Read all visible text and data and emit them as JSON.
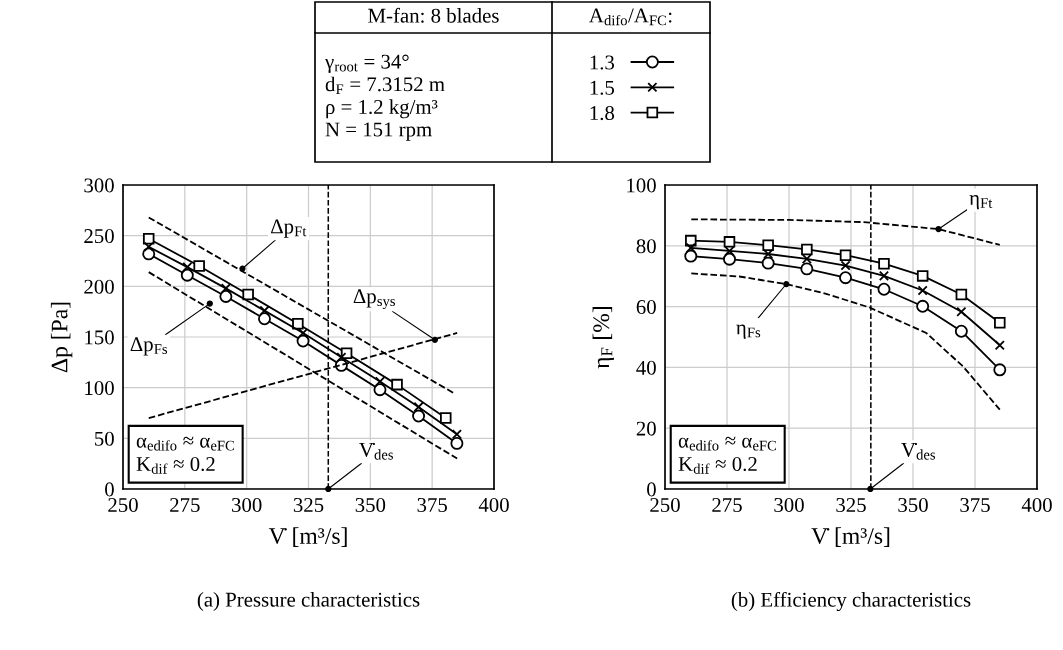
{
  "chart_data": [
    {
      "type": "line",
      "title": "(a) Pressure characteristics",
      "xlabel": "V̇ [m³/s]",
      "ylabel": "Δp [Pa]",
      "xlim": [
        250,
        400
      ],
      "xticks": [
        250,
        275,
        300,
        325,
        350,
        375,
        400
      ],
      "ylim": [
        0,
        300
      ],
      "yticks": [
        0,
        50,
        100,
        150,
        200,
        250,
        300
      ],
      "grid": true,
      "legend": "top",
      "legend_title": "A$_{difo}$/A$_{FC}$:",
      "series": [
        {
          "name": "1.3",
          "color": "#000000",
          "marker": "circle",
          "line_style": "solid",
          "x": [
            260.4,
            276,
            291.6,
            307.2,
            322.8,
            338.3,
            353.9,
            369.5,
            385
          ],
          "values": [
            232,
            211,
            190,
            168,
            146,
            122,
            98,
            72,
            45
          ]
        },
        {
          "name": "1.5",
          "color": "#000000",
          "marker": "cross",
          "line_style": "solid",
          "x": [
            260.4,
            276,
            291.6,
            307.2,
            322.8,
            338.3,
            353.9,
            369.5,
            385
          ],
          "values": [
            239,
            219,
            198,
            176,
            154,
            130,
            106,
            81,
            54
          ]
        },
        {
          "name": "1.8",
          "color": "#000000",
          "marker": "square",
          "line_style": "solid",
          "x": [
            260.4,
            280.8,
            300.6,
            320.7,
            340.4,
            360.8,
            380.5
          ],
          "values": [
            247,
            220,
            192,
            163,
            134,
            103,
            70
          ]
        },
        {
          "color": "#000000",
          "marker": "none",
          "line_style": "dashed",
          "x": [
            260.4,
            384.2
          ],
          "values": [
            268,
            94
          ]
        },
        {
          "color": "#000000",
          "marker": "none",
          "line_style": "dashed",
          "x": [
            260.4,
            385.1
          ],
          "values": [
            214,
            30
          ]
        },
        {
          "color": "#000000",
          "marker": "none",
          "line_style": "dashed",
          "x": [
            260.4,
            385.1
          ],
          "values": [
            70,
            154
          ]
        }
      ],
      "ref_lines": [
        {
          "axis": "x",
          "value": 333,
          "color": "#000000",
          "line_style": "dashed"
        }
      ],
      "annotations": [
        "M-fan: 8 blades",
        "γ$_{root}$ = 34°",
        "d$_{F}$ = 7.3152 m",
        "ρ = 1.2 kg/m³",
        "N = 151 rpm",
        "α$_{edifo}$ ≈ α$_{eFC}$\nK$_{dif}$ ≈ 0.2",
        {
          "text": "Δp$_{Ft}$",
          "x": 298.3,
          "y": 217.5
        },
        {
          "text": "Δp$_{Fs}$",
          "x": 285.1,
          "y": 183
        },
        {
          "text": "Δp$_{sys}$",
          "x": 376.1,
          "y": 147.2
        },
        {
          "text": "V̇$_{des}$",
          "x": 333,
          "y": 0
        }
      ]
    },
    {
      "type": "line",
      "title": "(b) Efficiency characteristics",
      "xlabel": "V̇ [m³/s]",
      "ylabel": "η$_{F}$ [%]",
      "xlim": [
        250,
        400
      ],
      "xticks": [
        250,
        275,
        300,
        325,
        350,
        375,
        400
      ],
      "ylim": [
        0,
        100
      ],
      "yticks": [
        0,
        20,
        40,
        60,
        80,
        100
      ],
      "grid": true,
      "series": [
        {
          "color": "#000000",
          "marker": "circle",
          "line_style": "solid",
          "x": [
            260.4,
            276,
            291.6,
            307.2,
            322.8,
            338.3,
            353.9,
            369.5,
            385
          ],
          "values": [
            76.6,
            75.6,
            74.3,
            72.4,
            69.5,
            65.7,
            60.1,
            51.9,
            39.2
          ]
        },
        {
          "color": "#000000",
          "marker": "cross",
          "line_style": "solid",
          "x": [
            260.4,
            276,
            291.6,
            307.2,
            322.8,
            338.3,
            353.9,
            369.5,
            385
          ],
          "values": [
            79.3,
            78.3,
            77.3,
            75.7,
            73.5,
            70.1,
            65.3,
            58.3,
            47.3
          ]
        },
        {
          "color": "#000000",
          "marker": "square",
          "line_style": "solid",
          "x": [
            260.4,
            276,
            291.6,
            307.2,
            322.8,
            338.3,
            353.9,
            369.5,
            385
          ],
          "values": [
            81.7,
            81.3,
            80.2,
            78.8,
            76.9,
            74.1,
            70.1,
            64,
            54.7
          ]
        },
        {
          "color": "#000000",
          "marker": "none",
          "line_style": "dashed",
          "x": [
            260.6,
            300,
            330,
            360.3,
            385
          ],
          "values": [
            88.7,
            88.5,
            87.8,
            85.5,
            80.3
          ]
        },
        {
          "color": "#000000",
          "marker": "none",
          "line_style": "dashed",
          "x": [
            260.6,
            280,
            298.9,
            315,
            332.5,
            355.4,
            370.2,
            385
          ],
          "values": [
            70.9,
            69.9,
            67.4,
            64.2,
            59.7,
            51.3,
            40.3,
            26.1
          ]
        }
      ],
      "ref_lines": [
        {
          "axis": "x",
          "value": 333,
          "color": "#000000",
          "line_style": "dashed"
        }
      ],
      "annotations": [
        "α$_{edifo}$ ≈ α$_{eFC}$\nK$_{dif}$ ≈ 0.2",
        {
          "text": "η$_{Ft}$",
          "x": 360.3,
          "y": 85.5
        },
        {
          "text": "η$_{Fs}$",
          "x": 298.9,
          "y": 67.4
        },
        {
          "text": "V̇$_{des}$",
          "x": 332.8,
          "y": 0
        }
      ]
    }
  ]
}
